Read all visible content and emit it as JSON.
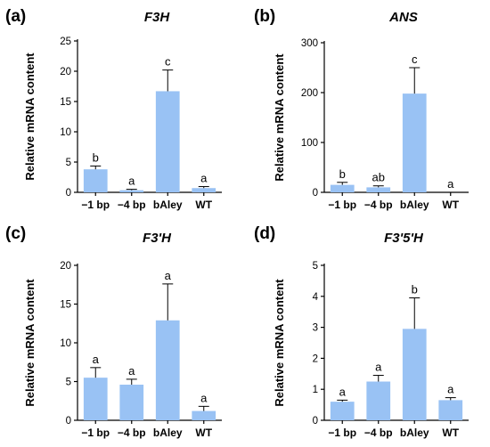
{
  "figure": {
    "bar_color": "#99c2f4",
    "axis_color": "#000000"
  },
  "chart_data": [
    {
      "panel": "(a)",
      "type": "bar",
      "title": "F3H",
      "ylabel": "Relative mRNA content",
      "categories": [
        "−1 bp",
        "−4 bp",
        "bAley",
        "WT"
      ],
      "values": [
        3.8,
        0.35,
        16.7,
        0.7
      ],
      "errors": [
        0.55,
        0.15,
        3.5,
        0.25
      ],
      "significance": [
        "b",
        "a",
        "c",
        "a"
      ],
      "ylim": [
        0,
        25
      ],
      "yticks": [
        0,
        5,
        10,
        15,
        20,
        25
      ]
    },
    {
      "panel": "(b)",
      "type": "bar",
      "title": "ANS",
      "ylabel": "Relative mRNA content",
      "categories": [
        "−1 bp",
        "−4 bp",
        "bAley",
        "WT"
      ],
      "values": [
        15,
        10,
        198,
        0
      ],
      "errors": [
        5,
        3,
        52,
        0
      ],
      "significance": [
        "b",
        "ab",
        "c",
        "a"
      ],
      "ylim": [
        0,
        300
      ],
      "yticks": [
        0,
        100,
        200,
        300
      ]
    },
    {
      "panel": "(c)",
      "type": "bar",
      "title": "F3'H",
      "ylabel": "Relative mRNA content",
      "categories": [
        "−1 bp",
        "−4 bp",
        "bAley",
        "WT"
      ],
      "values": [
        5.5,
        4.6,
        12.9,
        1.2
      ],
      "errors": [
        1.3,
        0.7,
        4.7,
        0.6
      ],
      "significance": [
        "a",
        "a",
        "a",
        "a"
      ],
      "ylim": [
        0,
        20
      ],
      "yticks": [
        0,
        5,
        10,
        15,
        20
      ]
    },
    {
      "panel": "(d)",
      "type": "bar",
      "title": "F3'5'H",
      "ylabel": "Relative mRNA content",
      "categories": [
        "−1 bp",
        "−4 bp",
        "bAley",
        "WT"
      ],
      "values": [
        0.6,
        1.25,
        2.95,
        0.65
      ],
      "errors": [
        0.05,
        0.2,
        1.0,
        0.08
      ],
      "significance": [
        "a",
        "a",
        "b",
        "a"
      ],
      "ylim": [
        0,
        5
      ],
      "yticks": [
        0,
        1,
        2,
        3,
        4,
        5
      ]
    }
  ]
}
